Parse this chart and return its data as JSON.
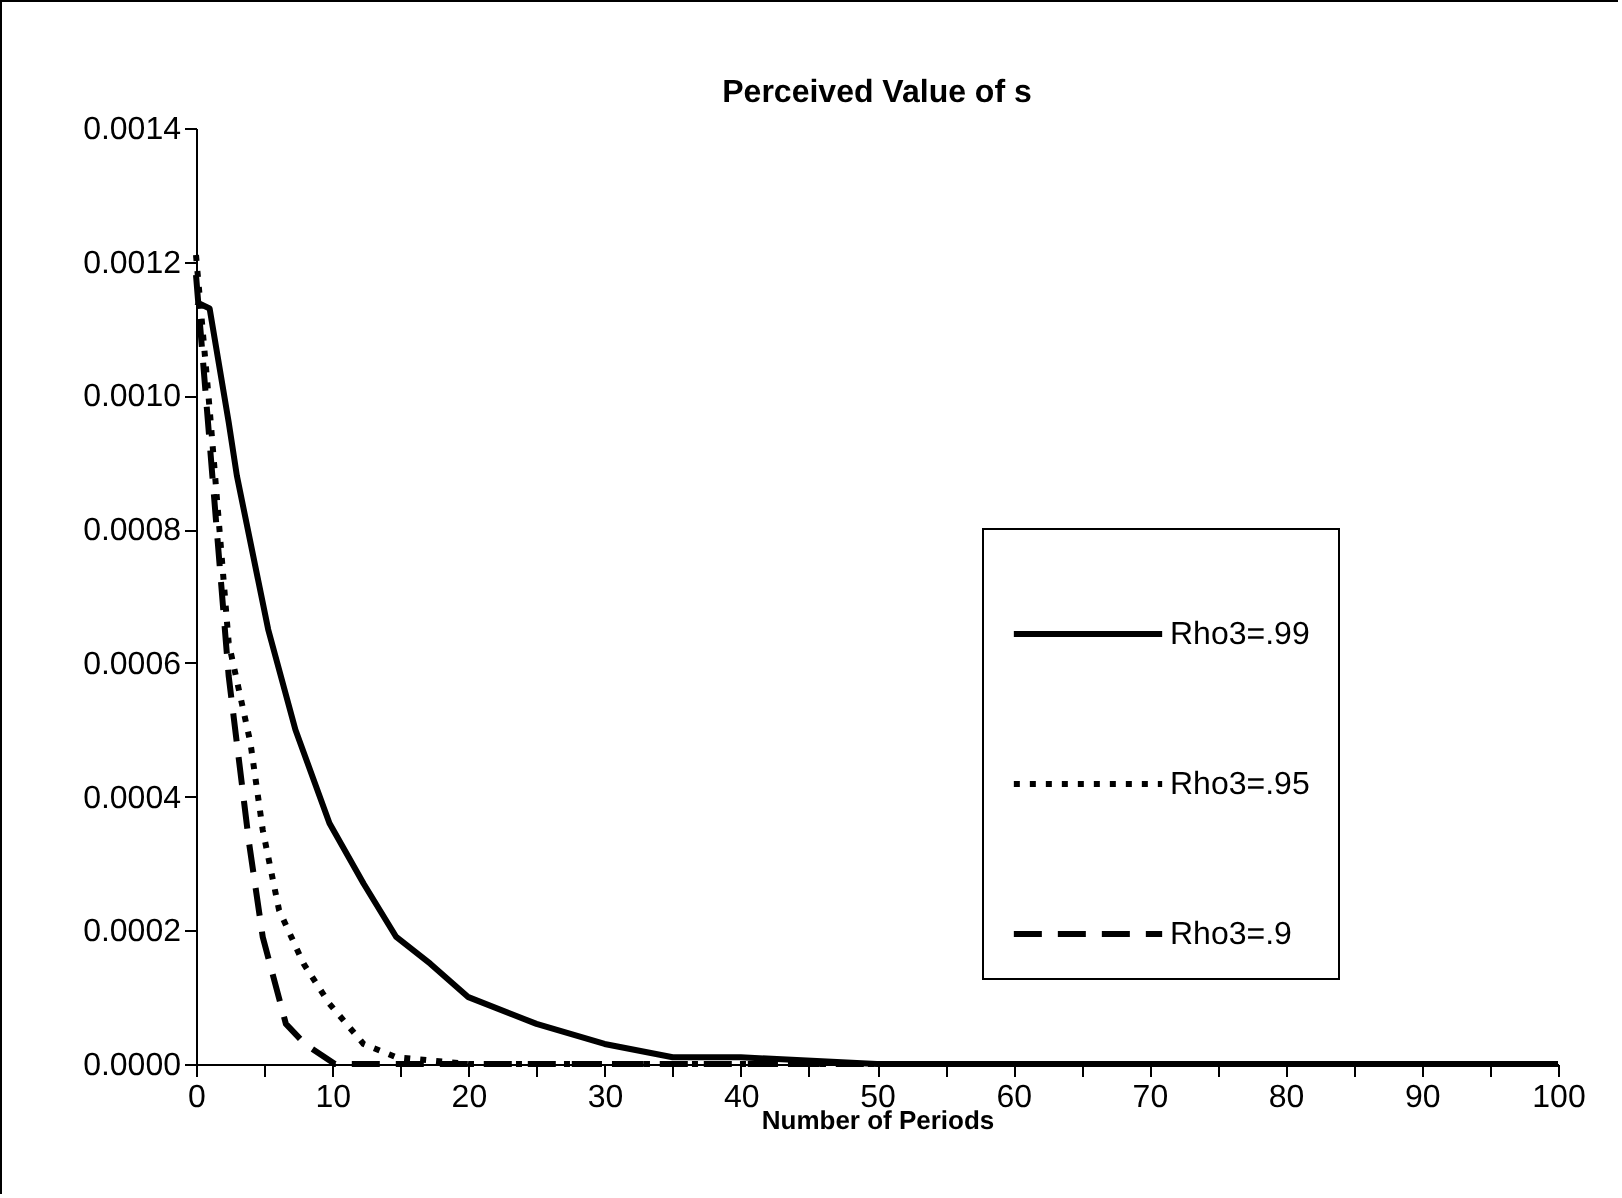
{
  "chart_data": {
    "type": "line",
    "title": "Perceived Value of s",
    "xlabel": "Number of Periods",
    "xlim": [
      0,
      100
    ],
    "xticks": [
      0,
      {
        "value": 5,
        "label": null
      },
      10,
      {
        "value": 15,
        "label": null
      },
      20,
      {
        "value": 25,
        "label": null
      },
      30,
      {
        "value": 35,
        "label": null
      },
      40,
      {
        "value": 45,
        "label": null
      },
      50,
      {
        "value": 55,
        "label": null
      },
      60,
      {
        "value": 65,
        "label": null
      },
      70,
      {
        "value": 75,
        "label": null
      },
      80,
      {
        "value": 85,
        "label": null
      },
      90,
      {
        "value": 95,
        "label": null
      },
      100
    ],
    "ylim": [
      0,
      0.0014
    ],
    "yticks": [
      {
        "value": 0,
        "label": "0.0000"
      },
      {
        "value": 0.0002,
        "label": "0.0002"
      },
      {
        "value": 0.0004,
        "label": "0.0004"
      },
      {
        "value": 0.0006,
        "label": "0.0006"
      },
      {
        "value": 0.0008,
        "label": "0.0008"
      },
      {
        "value": 0.001,
        "label": "0.0010"
      },
      {
        "value": 0.0012,
        "label": "0.0012"
      },
      {
        "value": 0.0014,
        "label": "0.0014"
      }
    ],
    "grid": false,
    "legend": "right",
    "marker": "none",
    "series": [
      {
        "name": "Rho3=.99",
        "color": "#000000",
        "line_style": "solid",
        "x": [
          0,
          1,
          2.4,
          3,
          5.3,
          7.3,
          9.8,
          12.3,
          14.7,
          17.2,
          20,
          25,
          30,
          35,
          40,
          50,
          60,
          70,
          80,
          90,
          100
        ],
        "values": [
          0.00114,
          0.00113,
          0.00096,
          0.00088,
          0.00065,
          0.0005,
          0.00036,
          0.00027,
          0.00019,
          0.00015,
          0.0001,
          6e-05,
          3e-05,
          1e-05,
          1e-05,
          0,
          0,
          0,
          0,
          0,
          0
        ]
      },
      {
        "name": "Rho3=.95",
        "color": "#000000",
        "line_style": "dotted",
        "x": [
          0,
          1,
          2.4,
          4,
          4.9,
          6.1,
          7.9,
          9.8,
          12.3,
          14.7,
          20,
          30,
          40,
          60,
          80,
          100
        ],
        "values": [
          0.00121,
          0.00098,
          0.00063,
          0.00048,
          0.00035,
          0.00023,
          0.00015,
          9e-05,
          3e-05,
          1e-05,
          0,
          0,
          0,
          0,
          0,
          0
        ]
      },
      {
        "name": "Rho3=.9",
        "color": "#000000",
        "line_style": "dashed",
        "x": [
          0,
          1,
          2.4,
          3.9,
          4.9,
          6.6,
          8,
          10.2,
          15,
          20,
          40,
          60,
          80,
          100
        ],
        "values": [
          0.00118,
          0.00093,
          0.00058,
          0.00033,
          0.00019,
          6e-05,
          3e-05,
          0,
          0,
          0,
          0,
          0,
          0,
          0
        ]
      }
    ]
  }
}
